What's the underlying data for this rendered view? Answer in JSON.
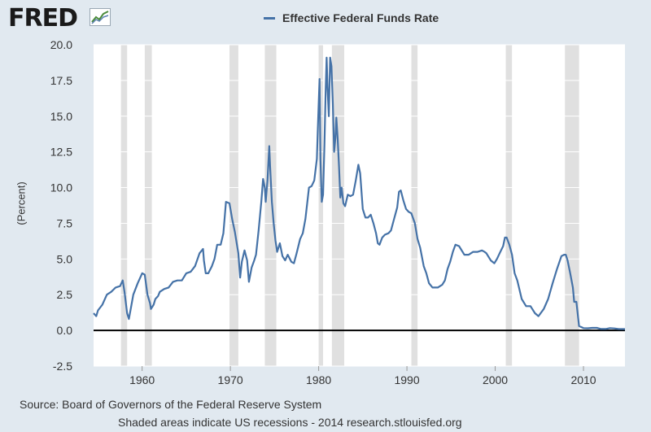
{
  "header": {
    "logo_text": "FRED",
    "logo_icon": "line-graph-icon"
  },
  "chart_data": {
    "type": "line",
    "title": "",
    "xlabel": "",
    "ylabel": "(Percent)",
    "ylim": [
      -2.5,
      20.0
    ],
    "xlim": [
      1954.5,
      2014.7
    ],
    "yticks": [
      "-2.5",
      "0.0",
      "2.5",
      "5.0",
      "7.5",
      "10.0",
      "12.5",
      "15.0",
      "17.5",
      "20.0"
    ],
    "xticks": [
      "1960",
      "1970",
      "1980",
      "1990",
      "2000",
      "2010"
    ],
    "grid": "horizontal",
    "legend": "top-center",
    "series": [
      {
        "name": "Effective Federal Funds Rate",
        "color": "#4572a7",
        "x": [
          1954.5,
          1954.8,
          1955.0,
          1955.5,
          1956.0,
          1956.5,
          1957.0,
          1957.5,
          1957.8,
          1958.0,
          1958.3,
          1958.5,
          1958.8,
          1959.0,
          1959.5,
          1960.0,
          1960.3,
          1960.6,
          1960.9,
          1961.0,
          1961.3,
          1961.5,
          1961.8,
          1962.0,
          1962.5,
          1963.0,
          1963.5,
          1964.0,
          1964.5,
          1965.0,
          1965.5,
          1966.0,
          1966.5,
          1966.9,
          1967.0,
          1967.2,
          1967.5,
          1967.9,
          1968.2,
          1968.5,
          1968.9,
          1969.2,
          1969.5,
          1969.9,
          1970.2,
          1970.5,
          1970.9,
          1971.1,
          1971.3,
          1971.6,
          1971.9,
          1972.1,
          1972.4,
          1972.7,
          1972.9,
          1973.2,
          1973.5,
          1973.7,
          1973.9,
          1974.0,
          1974.2,
          1974.4,
          1974.5,
          1974.7,
          1974.9,
          1975.1,
          1975.3,
          1975.6,
          1975.9,
          1976.2,
          1976.5,
          1976.9,
          1977.2,
          1977.5,
          1977.9,
          1978.2,
          1978.5,
          1978.9,
          1979.2,
          1979.5,
          1979.8,
          1979.9,
          1980.1,
          1980.2,
          1980.35,
          1980.5,
          1980.65,
          1980.8,
          1980.9,
          1981.0,
          1981.15,
          1981.3,
          1981.45,
          1981.6,
          1981.75,
          1981.9,
          1982.0,
          1982.15,
          1982.3,
          1982.45,
          1982.6,
          1982.8,
          1983.0,
          1983.3,
          1983.6,
          1983.9,
          1984.2,
          1984.5,
          1984.7,
          1985.0,
          1985.3,
          1985.6,
          1985.9,
          1986.2,
          1986.5,
          1986.7,
          1986.9,
          1987.2,
          1987.5,
          1987.9,
          1988.2,
          1988.5,
          1988.9,
          1989.1,
          1989.3,
          1989.6,
          1989.9,
          1990.2,
          1990.5,
          1990.9,
          1991.2,
          1991.5,
          1991.9,
          1992.2,
          1992.5,
          1992.9,
          1993.5,
          1994.0,
          1994.3,
          1994.6,
          1994.9,
          1995.2,
          1995.5,
          1995.9,
          1996.5,
          1997.0,
          1997.5,
          1998.0,
          1998.5,
          1998.8,
          1999.0,
          1999.5,
          1999.9,
          2000.2,
          2000.5,
          2000.9,
          2001.1,
          2001.3,
          2001.6,
          2001.9,
          2002.2,
          2002.5,
          2003.0,
          2003.5,
          2004.0,
          2004.5,
          2004.9,
          2005.5,
          2006.0,
          2006.5,
          2007.0,
          2007.5,
          2007.8,
          2008.0,
          2008.2,
          2008.5,
          2008.8,
          2008.95,
          2009.2,
          2009.5,
          2010.0,
          2010.5,
          2011.0,
          2011.5,
          2012.0,
          2012.5,
          2013.0,
          2013.5,
          2014.0,
          2014.7
        ],
        "values": [
          1.2,
          1.0,
          1.4,
          1.8,
          2.5,
          2.7,
          3.0,
          3.1,
          3.5,
          2.7,
          1.2,
          0.8,
          1.8,
          2.5,
          3.3,
          4.0,
          3.9,
          2.5,
          1.9,
          1.5,
          1.8,
          2.2,
          2.4,
          2.7,
          2.9,
          3.0,
          3.4,
          3.5,
          3.5,
          4.0,
          4.1,
          4.5,
          5.4,
          5.7,
          4.9,
          4.0,
          4.0,
          4.5,
          5.0,
          6.0,
          6.0,
          6.8,
          9.0,
          8.9,
          7.8,
          6.9,
          5.4,
          3.7,
          4.8,
          5.6,
          4.9,
          3.4,
          4.4,
          4.9,
          5.3,
          7.0,
          9.0,
          10.6,
          10.0,
          9.0,
          10.5,
          12.9,
          11.5,
          9.0,
          7.5,
          6.3,
          5.5,
          6.1,
          5.2,
          4.9,
          5.3,
          4.8,
          4.7,
          5.4,
          6.4,
          6.8,
          7.8,
          10.0,
          10.1,
          10.5,
          12.0,
          14.0,
          17.6,
          12.0,
          9.0,
          9.5,
          13.0,
          17.0,
          19.1,
          17.0,
          15.0,
          19.1,
          18.5,
          15.9,
          12.5,
          13.5,
          14.9,
          13.5,
          11.5,
          9.3,
          10.0,
          8.9,
          8.7,
          9.5,
          9.4,
          9.5,
          10.5,
          11.6,
          11.0,
          8.5,
          7.9,
          7.9,
          8.1,
          7.5,
          6.8,
          6.1,
          6.0,
          6.5,
          6.7,
          6.8,
          7.0,
          7.7,
          8.6,
          9.7,
          9.8,
          9.1,
          8.5,
          8.3,
          8.2,
          7.5,
          6.4,
          5.8,
          4.5,
          4.0,
          3.3,
          3.0,
          3.0,
          3.2,
          3.5,
          4.3,
          4.8,
          5.5,
          6.0,
          5.9,
          5.3,
          5.3,
          5.5,
          5.5,
          5.6,
          5.5,
          5.4,
          4.9,
          4.7,
          5.0,
          5.4,
          5.9,
          6.5,
          6.5,
          6.0,
          5.3,
          4.0,
          3.5,
          2.2,
          1.7,
          1.7,
          1.2,
          1.0,
          1.5,
          2.2,
          3.3,
          4.3,
          5.2,
          5.3,
          5.3,
          4.9,
          4.0,
          3.0,
          2.0,
          2.0,
          0.3,
          0.16,
          0.15,
          0.18,
          0.18,
          0.1,
          0.1,
          0.16,
          0.14,
          0.09,
          0.09
        ]
      }
    ],
    "recessions": [
      [
        1957.6,
        1958.3
      ],
      [
        1960.3,
        1961.1
      ],
      [
        1969.9,
        1970.9
      ],
      [
        1973.9,
        1975.2
      ],
      [
        1980.0,
        1980.5
      ],
      [
        1981.5,
        1982.9
      ],
      [
        1990.5,
        1991.2
      ],
      [
        2001.2,
        2001.9
      ],
      [
        2007.9,
        2009.5
      ]
    ]
  },
  "footer": {
    "source": "Source: Board of Governors of the Federal Reserve System",
    "note": "Shaded areas indicate US recessions - 2014 research.stlouisfed.org"
  }
}
